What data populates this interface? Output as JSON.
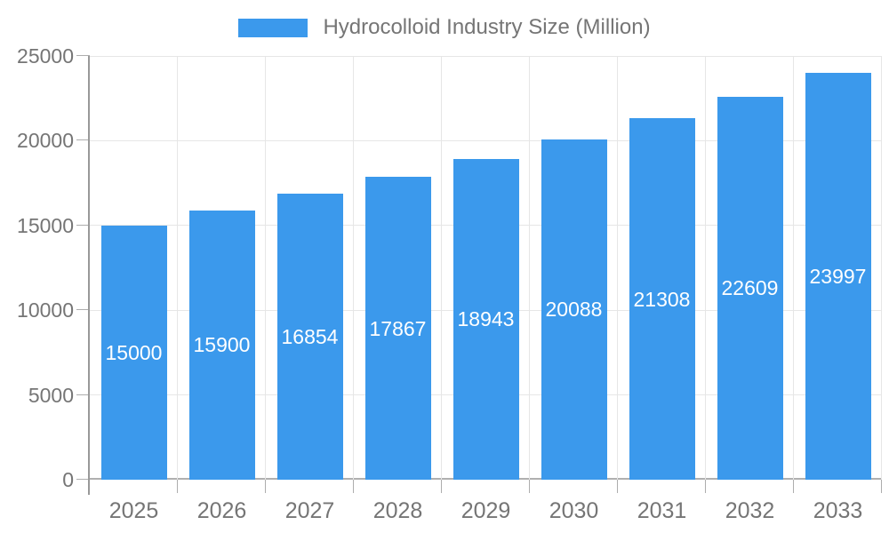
{
  "chart_data": {
    "type": "bar",
    "title": "Hydrocolloid Industry Size (Million)",
    "series_name": "Hydrocolloid Industry Size (Million)",
    "legend_position": "top",
    "categories": [
      "2025",
      "2026",
      "2027",
      "2028",
      "2029",
      "2030",
      "2031",
      "2032",
      "2033"
    ],
    "values": [
      15000,
      15900,
      16854,
      17867,
      18943,
      20088,
      21308,
      22609,
      23997
    ],
    "xlabel": "",
    "ylabel": "",
    "ylim": [
      0,
      25000
    ],
    "y_ticks": [
      0,
      5000,
      10000,
      15000,
      20000,
      25000
    ],
    "grid": true,
    "bar_value_labels_visible": true,
    "colors": {
      "bar": "#3B99EC",
      "bar_label_text": "#FFFFFF",
      "axis_text": "#757575",
      "gridline": "#E6E6E6",
      "axis_line": "#999999",
      "baseline": "#B0B0B0",
      "tick": "#ADADAD",
      "background": "#FFFFFF"
    }
  }
}
